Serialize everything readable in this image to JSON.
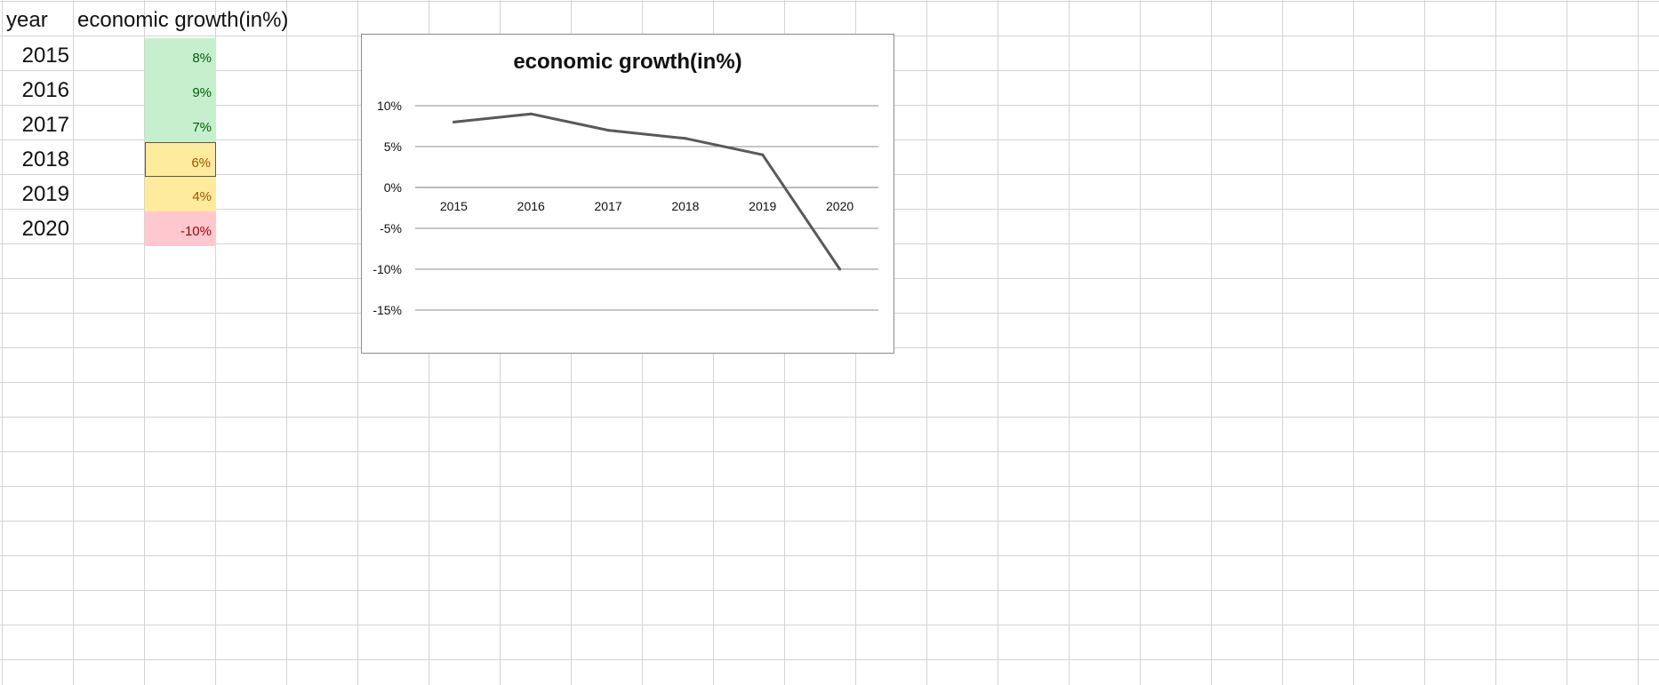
{
  "sheet": {
    "header_year": "year",
    "header_growth": "economic growth(in%)",
    "rows": [
      {
        "year": "2015",
        "value": "8%",
        "fill": "#c6efce",
        "color": "#006100"
      },
      {
        "year": "2016",
        "value": "9%",
        "fill": "#c6efce",
        "color": "#006100"
      },
      {
        "year": "2017",
        "value": "7%",
        "fill": "#c6efce",
        "color": "#006100"
      },
      {
        "year": "2018",
        "value": "6%",
        "fill": "#ffeb9c",
        "color": "#9c5700"
      },
      {
        "year": "2019",
        "value": "4%",
        "fill": "#ffeb9c",
        "color": "#9c5700"
      },
      {
        "year": "2020",
        "value": "-10%",
        "fill": "#ffc7ce",
        "color": "#9c0006"
      }
    ],
    "selected_row": 3
  },
  "chart_data": {
    "type": "line",
    "title": "economic growth(in%)",
    "categories": [
      "2015",
      "2016",
      "2017",
      "2018",
      "2019",
      "2020"
    ],
    "series": [
      {
        "values": [
          8,
          9,
          7,
          6,
          4,
          -10
        ]
      }
    ],
    "ylim": [
      -15,
      10
    ],
    "ytick_labels": [
      "10%",
      "5%",
      "0%",
      "-5%",
      "-10%",
      "-15%"
    ],
    "ytick_values": [
      10,
      5,
      0,
      -5,
      -10,
      -15
    ],
    "xaxis_at": 0,
    "grid": true,
    "legend": "none",
    "line_color": "#595959"
  }
}
